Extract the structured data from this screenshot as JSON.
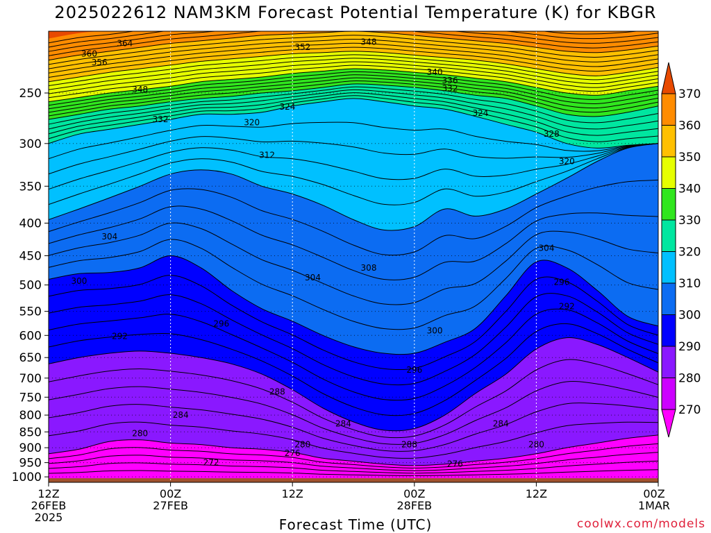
{
  "chart_data": {
    "type": "contour",
    "title": "2025022612 NAM3KM Forecast Potential Temperature (K) for KBGR",
    "xlabel": "Forecast Time (UTC)",
    "ylabel": "",
    "credit": "coolwx.com/models",
    "x_range_hours": [
      0,
      60
    ],
    "x_ticks": [
      {
        "hour": 0,
        "lines": [
          "12Z",
          "26FEB",
          "2025"
        ]
      },
      {
        "hour": 12,
        "lines": [
          "00Z",
          "27FEB"
        ]
      },
      {
        "hour": 24,
        "lines": [
          "12Z"
        ]
      },
      {
        "hour": 36,
        "lines": [
          "00Z",
          "28FEB"
        ]
      },
      {
        "hour": 48,
        "lines": [
          "12Z"
        ]
      },
      {
        "hour": 60,
        "lines": [
          "00Z",
          "1MAR"
        ]
      }
    ],
    "y_axis": {
      "scale": "log-pressure",
      "range_hPa": [
        1020,
        200
      ],
      "inverted": true
    },
    "y_ticks": [
      250,
      300,
      350,
      400,
      450,
      500,
      550,
      600,
      650,
      700,
      750,
      800,
      850,
      900,
      950,
      1000
    ],
    "colorbar": {
      "levels": [
        270,
        280,
        290,
        300,
        310,
        320,
        330,
        340,
        350,
        360,
        370
      ],
      "colors": [
        "#ff00ff",
        "#cc00ff",
        "#8a18ff",
        "#0000ff",
        "#0c6cf2",
        "#00c0ff",
        "#00e6a0",
        "#30e61e",
        "#e6ff00",
        "#ffc000",
        "#ff8c00",
        "#e84a00"
      ]
    },
    "contour_interval_K": 2,
    "ground_color": "#a0522d",
    "x_hours": [
      0,
      3,
      6,
      9,
      12,
      15,
      18,
      21,
      24,
      27,
      30,
      33,
      36,
      39,
      42,
      45,
      48,
      51,
      54,
      57,
      60
    ],
    "isentropes_hPa": {
      "270": [
        1005,
        1005,
        1005,
        1005,
        1005,
        1005,
        1005,
        1005,
        1005,
        1005,
        1005,
        1005,
        1005,
        1005,
        1005,
        1005,
        1005,
        1005,
        1005,
        1005,
        1005
      ],
      "280": [
        920,
        905,
        880,
        875,
        885,
        890,
        900,
        905,
        915,
        935,
        945,
        955,
        960,
        955,
        945,
        935,
        920,
        900,
        885,
        870,
        860
      ],
      "290": [
        665,
        650,
        640,
        635,
        640,
        650,
        665,
        690,
        730,
        780,
        820,
        845,
        840,
        800,
        740,
        690,
        630,
        605,
        620,
        650,
        685
      ],
      "300": [
        490,
        480,
        478,
        470,
        450,
        470,
        510,
        545,
        570,
        600,
        625,
        640,
        640,
        615,
        585,
        520,
        460,
        470,
        510,
        560,
        580
      ],
      "310": [
        395,
        380,
        365,
        350,
        335,
        330,
        335,
        350,
        360,
        375,
        395,
        410,
        405,
        380,
        390,
        380,
        360,
        340,
        320,
        305,
        300
      ],
      "320": [
        300,
        290,
        285,
        280,
        275,
        270,
        270,
        268,
        262,
        258,
        255,
        258,
        262,
        265,
        272,
        280,
        288,
        300,
        305,
        302,
        300
      ],
      "330": [
        275,
        270,
        265,
        262,
        258,
        255,
        253,
        250,
        248,
        245,
        242,
        243,
        245,
        248,
        252,
        255,
        262,
        270,
        272,
        268,
        262
      ],
      "340": [
        258,
        254,
        250,
        247,
        244,
        240,
        238,
        236,
        233,
        231,
        229,
        230,
        232,
        234,
        237,
        240,
        245,
        250,
        252,
        248,
        244
      ],
      "350": [
        240,
        236,
        232,
        229,
        226,
        223,
        221,
        219,
        217,
        216,
        215,
        216,
        218,
        220,
        222,
        225,
        229,
        233,
        235,
        232,
        228
      ],
      "360": [
        222,
        218,
        215,
        212,
        209,
        207,
        205,
        203,
        202,
        201,
        200,
        201,
        203,
        205,
        207,
        209,
        212,
        215,
        216,
        214,
        211
      ]
    },
    "contour_labels": [
      {
        "text": "364",
        "hour": 7.5,
        "hPa": 209
      },
      {
        "text": "360",
        "hour": 4.0,
        "hPa": 217
      },
      {
        "text": "356",
        "hour": 5.0,
        "hPa": 224
      },
      {
        "text": "352",
        "hour": 25.0,
        "hPa": 212
      },
      {
        "text": "348",
        "hour": 31.5,
        "hPa": 208
      },
      {
        "text": "348",
        "hour": 9.0,
        "hPa": 247
      },
      {
        "text": "340",
        "hour": 38.0,
        "hPa": 232
      },
      {
        "text": "336",
        "hour": 39.5,
        "hPa": 239
      },
      {
        "text": "332",
        "hour": 39.5,
        "hPa": 246
      },
      {
        "text": "332",
        "hour": 11.0,
        "hPa": 275
      },
      {
        "text": "324",
        "hour": 23.5,
        "hPa": 263
      },
      {
        "text": "324",
        "hour": 42.5,
        "hPa": 269
      },
      {
        "text": "320",
        "hour": 20.0,
        "hPa": 278
      },
      {
        "text": "328",
        "hour": 49.5,
        "hPa": 290
      },
      {
        "text": "320",
        "hour": 51.0,
        "hPa": 320
      },
      {
        "text": "312",
        "hour": 21.5,
        "hPa": 313
      },
      {
        "text": "304",
        "hour": 6.0,
        "hPa": 420
      },
      {
        "text": "304",
        "hour": 49.0,
        "hPa": 438
      },
      {
        "text": "304",
        "hour": 26.0,
        "hPa": 487
      },
      {
        "text": "308",
        "hour": 31.5,
        "hPa": 470
      },
      {
        "text": "300",
        "hour": 3.0,
        "hPa": 493
      },
      {
        "text": "296",
        "hour": 17.0,
        "hPa": 575
      },
      {
        "text": "296",
        "hour": 50.5,
        "hPa": 495
      },
      {
        "text": "292",
        "hour": 51.0,
        "hPa": 540
      },
      {
        "text": "300",
        "hour": 38.0,
        "hPa": 590
      },
      {
        "text": "292",
        "hour": 7.0,
        "hPa": 602
      },
      {
        "text": "296",
        "hour": 36.0,
        "hPa": 680
      },
      {
        "text": "288",
        "hour": 22.5,
        "hPa": 735
      },
      {
        "text": "284",
        "hour": 13.0,
        "hPa": 800
      },
      {
        "text": "284",
        "hour": 29.0,
        "hPa": 825
      },
      {
        "text": "284",
        "hour": 44.5,
        "hPa": 825
      },
      {
        "text": "288",
        "hour": 35.5,
        "hPa": 890
      },
      {
        "text": "280",
        "hour": 9.0,
        "hPa": 855
      },
      {
        "text": "280",
        "hour": 25.0,
        "hPa": 890
      },
      {
        "text": "280",
        "hour": 48.0,
        "hPa": 890
      },
      {
        "text": "276",
        "hour": 24.0,
        "hPa": 918
      },
      {
        "text": "276",
        "hour": 40.0,
        "hPa": 955
      },
      {
        "text": "272",
        "hour": 16.0,
        "hPa": 950
      }
    ]
  }
}
